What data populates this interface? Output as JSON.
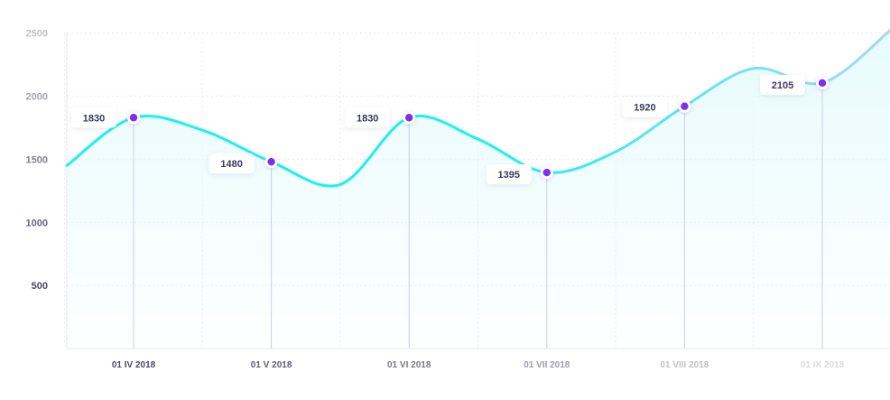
{
  "chart_data": {
    "type": "area",
    "title": "",
    "xlabel": "",
    "ylabel": "",
    "ylim": [
      0,
      2500
    ],
    "y_ticks": [
      "500",
      "1000",
      "1500",
      "2000",
      "2500"
    ],
    "x_ticks": [
      "01 IV 2018",
      "01 V 2018",
      "01 VI 2018",
      "01 VII 2018",
      "01 VIII 2018",
      "01 IX 2018"
    ],
    "grid": true,
    "legend": "none",
    "series": [
      {
        "curve": [
          {
            "x": "01 IV 2018",
            "y": 1830
          },
          {
            "x": "16 IV 2018",
            "y": 1730
          },
          {
            "x": "01 V 2018",
            "y": 1480
          },
          {
            "x": "16 V 2018",
            "y": 1300
          },
          {
            "x": "01 VI 2018",
            "y": 1830
          },
          {
            "x": "16 VI 2018",
            "y": 1660
          },
          {
            "x": "01 VII 2018",
            "y": 1395
          },
          {
            "x": "16 VII 2018",
            "y": 1560
          },
          {
            "x": "01 VIII 2018",
            "y": 1920
          },
          {
            "x": "16 VIII 2018",
            "y": 2220
          },
          {
            "x": "01 IX 2018",
            "y": 2105
          }
        ],
        "start_value": 1450,
        "end_value": 2520,
        "points": [
          {
            "x": "01 IV 2018",
            "value": 1830,
            "label": "1830"
          },
          {
            "x": "01 V 2018",
            "value": 1480,
            "label": "1480"
          },
          {
            "x": "01 VI 2018",
            "value": 1830,
            "label": "1830"
          },
          {
            "x": "01 VII 2018",
            "value": 1395,
            "label": "1395"
          },
          {
            "x": "01 VIII 2018",
            "value": 1920,
            "label": "1920"
          },
          {
            "x": "01 IX 2018",
            "value": 2105,
            "label": "2105"
          }
        ]
      }
    ],
    "colors": {
      "line_start": "#1ef0f2",
      "line_end": "#a9d8f6",
      "area_fill": "#e6fbfd",
      "point": "#7b2ff0",
      "point_ring": "#ffffff",
      "label_bg": "#ffffff",
      "drop_line": "#c9cfee",
      "grid": "#e6eaf3",
      "tick_dark": "#4a4a66",
      "tick_fade": "#cfd4e4"
    }
  }
}
